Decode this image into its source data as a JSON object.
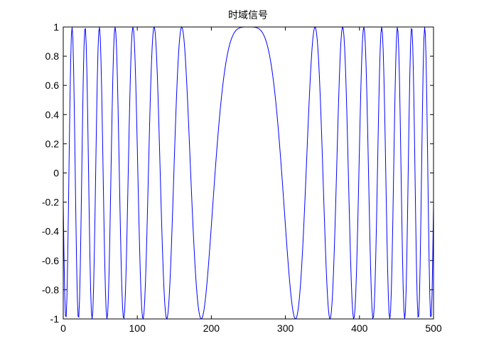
{
  "chart_data": {
    "type": "line",
    "title": "时域信号",
    "xlabel": "",
    "ylabel": "",
    "xlim": [
      0,
      500
    ],
    "ylim": [
      -1,
      1
    ],
    "xticks": [
      "0",
      "100",
      "200",
      "300",
      "400",
      "500"
    ],
    "yticks": [
      "-1",
      "-0.8",
      "-0.6",
      "-0.4",
      "-0.2",
      "0",
      "0.2",
      "0.4",
      "0.6",
      "0.8",
      "1"
    ],
    "grid": false,
    "series": [
      {
        "color": "#0000ff",
        "x_start": 0,
        "x_end": 500,
        "x_step": 1,
        "expression": "cos(2*pi*(n-250)^2/8100)"
      }
    ]
  }
}
